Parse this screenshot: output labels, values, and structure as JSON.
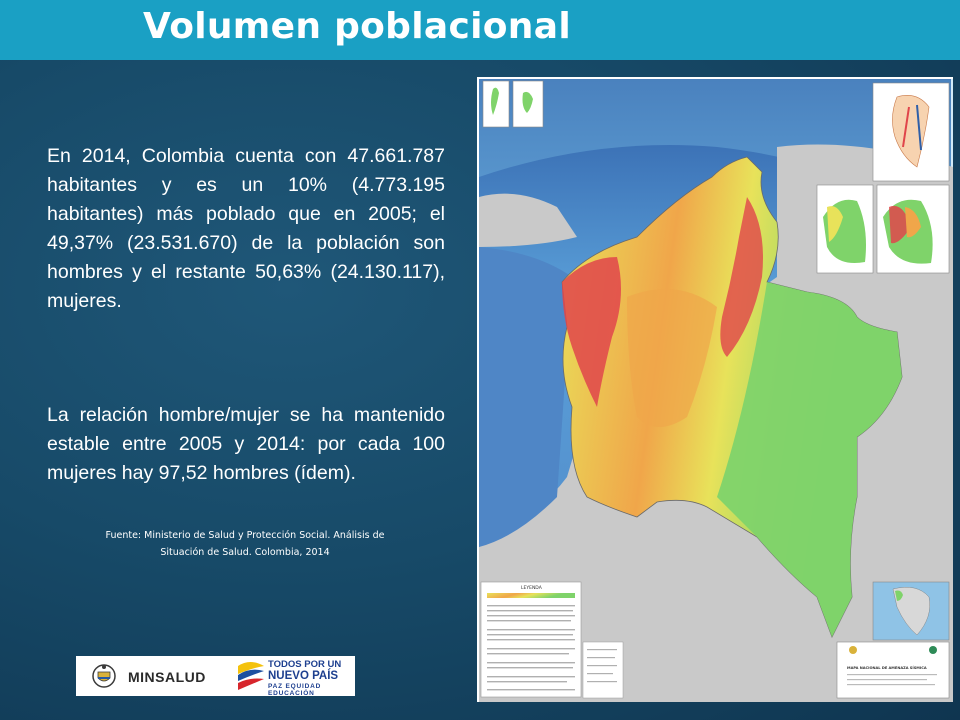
{
  "slide": {
    "title": "Volumen poblacional",
    "paragraph_1": "En 2014, Colombia cuenta con 47.661.787 habitantes y es un 10% (4.773.195 habitantes) más poblado que en 2005; el 49,37% (23.531.670) de la población son hombres y el restante 50,63% (24.130.117), mujeres.",
    "paragraph_2": "La relación hombre/mujer se ha mantenido estable entre 2005 y 2014: por cada 100 mujeres hay 97,52 hombres (ídem).",
    "source_line_1": "Fuente: Ministerio de Salud y Protección Social. Análisis de",
    "source_line_2": "Situación de Salud. Colombia, 2014"
  },
  "logos": {
    "minsalud": "MINSALUD",
    "todos_line_1": "TODOS POR UN",
    "todos_line_2": "NUEVO PAÍS",
    "todos_line_3": "PAZ EQUIDAD EDUCACIÓN"
  },
  "map": {
    "legend_title": "LEYENDA",
    "map_title": "MAPA NACIONAL DE AMENAZA SÍSMICA",
    "colors": {
      "ocean_deep": "#2f5fa8",
      "ocean_shallow": "#7ec3e8",
      "land_grey": "#c9c9c9",
      "green": "#7fd36a",
      "yellow": "#e8e25a",
      "orange": "#f0a64a",
      "red": "#e0454b"
    }
  }
}
